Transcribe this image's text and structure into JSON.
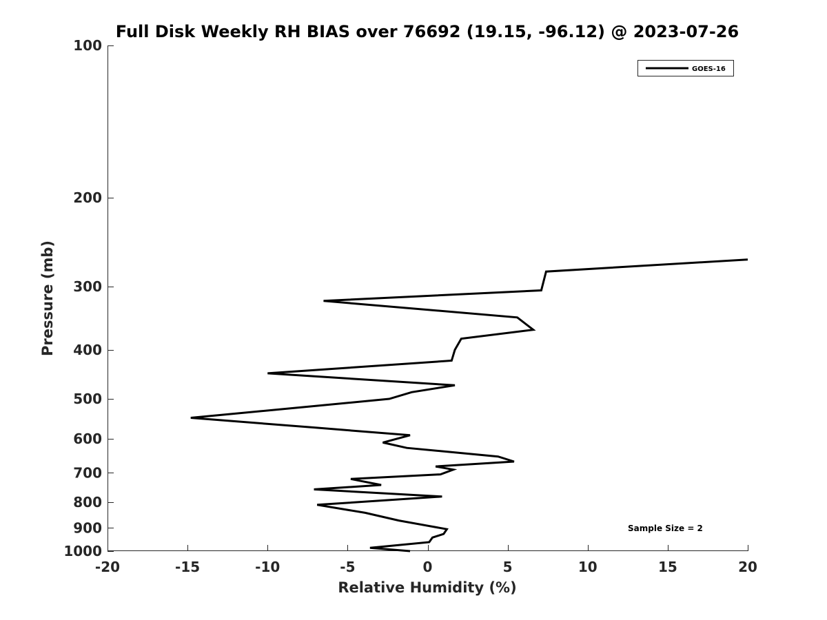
{
  "chart_data": {
    "type": "line",
    "title": "Full Disk Weekly RH BIAS over 76692 (19.15, -96.12) @ 2023-07-26",
    "xlabel": "Relative Humidity (%)",
    "ylabel": "Pressure (mb)",
    "xlim": [
      -20,
      20
    ],
    "ylim": [
      100,
      1000
    ],
    "yscale": "log",
    "y_reversed": true,
    "x_ticks": [
      -20,
      -15,
      -10,
      -5,
      0,
      5,
      10,
      15,
      20
    ],
    "x_tick_labels": [
      "-20",
      "-15",
      "-10",
      "-5",
      "0",
      "5",
      "10",
      "15",
      "20"
    ],
    "y_ticks": [
      100,
      200,
      300,
      400,
      500,
      600,
      700,
      800,
      900,
      1000
    ],
    "y_tick_labels": [
      "100",
      "200",
      "300",
      "400",
      "500",
      "600",
      "700",
      "800",
      "900",
      "1000"
    ],
    "grid": false,
    "legend_position": "top-right",
    "annotation": "Sample Size = 2",
    "series": [
      {
        "name": "GOES-16",
        "color": "#000000",
        "x": [
          20.0,
          7.4,
          7.1,
          -6.5,
          5.6,
          6.6,
          2.1,
          1.7,
          1.5,
          -10.0,
          1.7,
          -1.0,
          -2.4,
          -8.0,
          -14.8,
          -7.0,
          -1.1,
          -2.8,
          -1.3,
          4.4,
          5.4,
          0.5,
          1.6,
          0.8,
          -4.8,
          -2.9,
          -7.1,
          0.9,
          -6.9,
          -3.9,
          -1.8,
          1.2,
          1.0,
          0.3,
          0.1,
          -3.6,
          -1.1
        ],
        "y": [
          265,
          280,
          305,
          320,
          345,
          365,
          380,
          400,
          420,
          445,
          470,
          485,
          500,
          520,
          545,
          570,
          590,
          610,
          625,
          650,
          665,
          680,
          690,
          705,
          720,
          740,
          755,
          780,
          810,
          840,
          870,
          905,
          925,
          940,
          960,
          985,
          1000
        ]
      }
    ]
  }
}
